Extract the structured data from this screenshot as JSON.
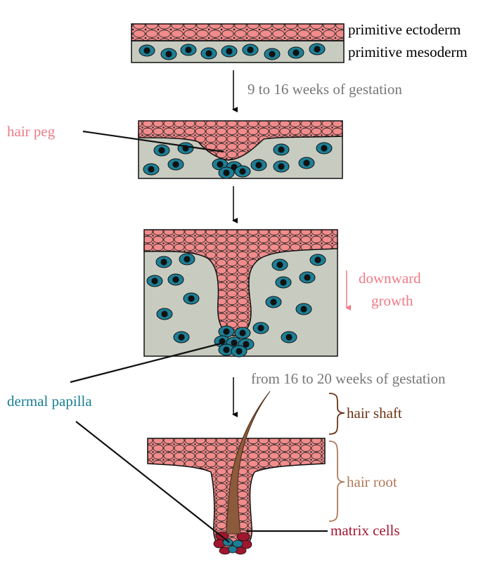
{
  "labels": {
    "primitive_ectoderm": "primitive ectoderm",
    "primitive_mesoderm": "primitive mesoderm",
    "stage1_caption": "9 to 16 weeks of gestation",
    "hair_peg": "hair peg",
    "downward": "downward",
    "growth": "growth",
    "stage3_caption": "from 16 to 20 weeks of gestation",
    "dermal_papilla": "dermal papilla",
    "hair_shaft": "hair shaft",
    "hair_root": "hair root",
    "matrix_cells": "matrix cells"
  },
  "colors": {
    "ectoderm_cell": "#f28b8b",
    "mesoderm_bg": "#c8ccc0",
    "mesoderm_cell": "#1d7f96",
    "hair": "#8c5a3c",
    "matrix": "#a0162e",
    "label_pink": "#f07a86",
    "label_teal": "#1a7f95",
    "label_gray": "#777777",
    "label_brown_dark": "#6b3416",
    "label_brown_light": "#b07a5a",
    "label_red": "#a3152f"
  }
}
